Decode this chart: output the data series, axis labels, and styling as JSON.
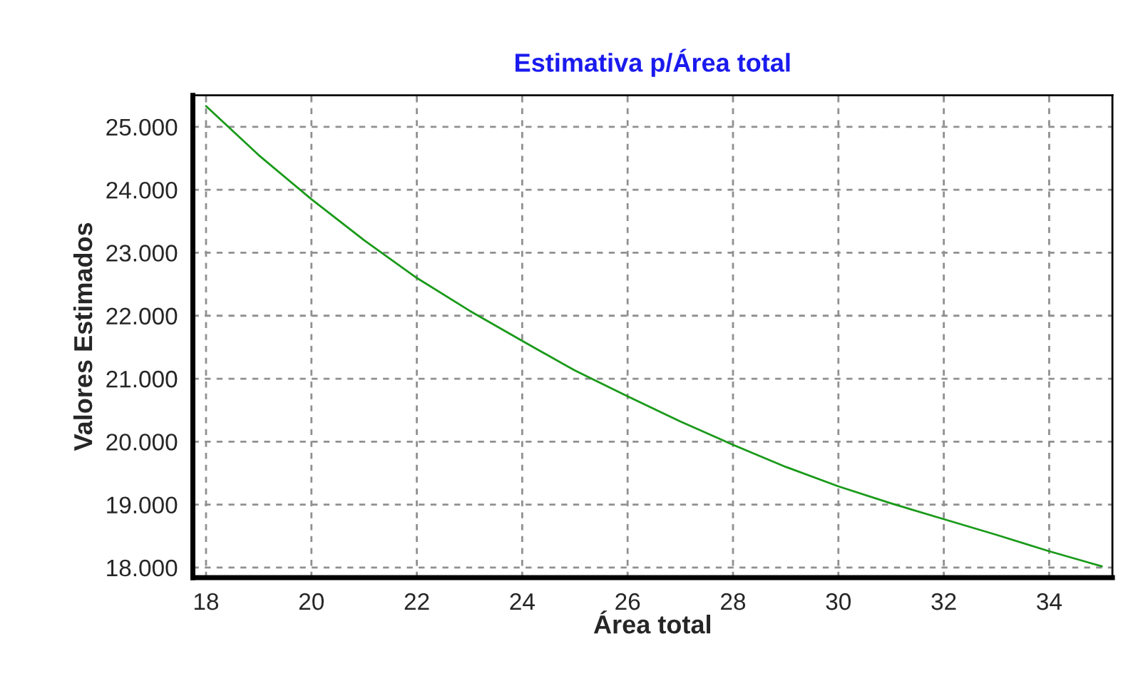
{
  "chart_data": {
    "type": "line",
    "title": "Estimativa p/Área total",
    "xlabel": "Área total",
    "ylabel": "Valores Estimados",
    "x": [
      18,
      19,
      20,
      21,
      22,
      23,
      24,
      25,
      26,
      27,
      28,
      29,
      30,
      31,
      32,
      33,
      34,
      35
    ],
    "series": [
      {
        "color": "#1a9a1a",
        "values": [
          25330,
          24550,
          23850,
          23200,
          22600,
          22080,
          21600,
          21130,
          20720,
          20320,
          19950,
          19600,
          19290,
          19020,
          18770,
          18520,
          18260,
          18020
        ]
      }
    ],
    "xlim": [
      17.75,
      35.2
    ],
    "ylim": [
      17840,
      25500
    ],
    "xticks": [
      18,
      20,
      22,
      24,
      26,
      28,
      30,
      32,
      34
    ],
    "yticks": [
      {
        "value": 18000,
        "label": "18.000"
      },
      {
        "value": 19000,
        "label": "19.000"
      },
      {
        "value": 20000,
        "label": "20.000"
      },
      {
        "value": 21000,
        "label": "21.000"
      },
      {
        "value": 22000,
        "label": "22.000"
      },
      {
        "value": 23000,
        "label": "23.000"
      },
      {
        "value": 24000,
        "label": "24.000"
      },
      {
        "value": 25000,
        "label": "25.000"
      }
    ],
    "grid": true,
    "legend": false,
    "marker": "none",
    "line_style": "solid"
  }
}
